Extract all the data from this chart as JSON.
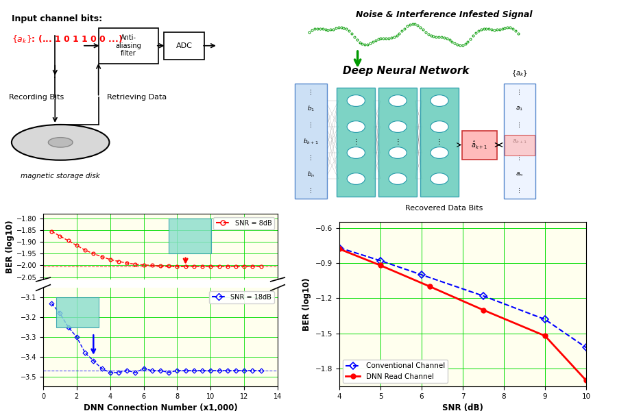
{
  "background_color": "#ffffff",
  "panel_bg": "#ffffee",
  "grid_color": "#00dd00",
  "left_chart": {
    "xlabel": "DNN Connection Number (x1,000)",
    "ylabel": "BER (log10)",
    "xlim": [
      0,
      14
    ],
    "yticks_top": [
      -1.8,
      -1.85,
      -1.9,
      -1.95,
      -2.0,
      -2.05
    ],
    "yticks_bot": [
      -3.1,
      -3.2,
      -3.3,
      -3.4,
      -3.5
    ],
    "xticks": [
      0,
      2,
      4,
      6,
      8,
      10,
      12,
      14
    ],
    "red_x": [
      0.5,
      1.0,
      1.5,
      2.0,
      2.5,
      3.0,
      3.5,
      4.0,
      4.5,
      5.0,
      5.5,
      6.0,
      6.5,
      7.0,
      7.5,
      8.0,
      8.5,
      9.0,
      9.5,
      10.0,
      10.5,
      11.0,
      11.5,
      12.0,
      12.5,
      13.0
    ],
    "red_y": [
      -1.855,
      -1.875,
      -1.895,
      -1.915,
      -1.935,
      -1.95,
      -1.963,
      -1.975,
      -1.983,
      -1.99,
      -1.995,
      -1.998,
      -2.0,
      -2.002,
      -2.003,
      -2.004,
      -2.004,
      -2.005,
      -2.005,
      -2.005,
      -2.005,
      -2.005,
      -2.005,
      -2.005,
      -2.005,
      -2.005
    ],
    "blue_x": [
      0.5,
      1.0,
      1.5,
      2.0,
      2.5,
      3.0,
      3.5,
      4.0,
      4.5,
      5.0,
      5.5,
      6.0,
      6.5,
      7.0,
      7.5,
      8.0,
      8.5,
      9.0,
      9.5,
      10.0,
      10.5,
      11.0,
      11.5,
      12.0,
      12.5,
      13.0
    ],
    "blue_y": [
      -3.13,
      -3.18,
      -3.25,
      -3.3,
      -3.38,
      -3.42,
      -3.46,
      -3.48,
      -3.48,
      -3.47,
      -3.48,
      -3.46,
      -3.47,
      -3.47,
      -3.48,
      -3.47,
      -3.47,
      -3.47,
      -3.47,
      -3.47,
      -3.47,
      -3.47,
      -3.47,
      -3.47,
      -3.47,
      -3.47
    ],
    "legend_snr8": "SNR = 8dB",
    "legend_snr18": "SNR = 18dB"
  },
  "right_chart": {
    "xlabel": "SNR (dB)",
    "ylabel": "BER (log10)",
    "xlim": [
      4,
      10
    ],
    "ylim": [
      -1.95,
      -0.55
    ],
    "xticks": [
      4,
      5,
      6,
      7,
      8,
      9,
      10
    ],
    "yticks": [
      -0.6,
      -0.9,
      -1.2,
      -1.5,
      -1.8
    ],
    "conv_x": [
      4,
      5,
      6,
      7.5,
      9,
      10
    ],
    "conv_y": [
      -0.77,
      -0.88,
      -1.0,
      -1.18,
      -1.38,
      -1.62
    ],
    "dnn_x": [
      4,
      5,
      6.2,
      7.5,
      9,
      10
    ],
    "dnn_y": [
      -0.78,
      -0.92,
      -1.1,
      -1.3,
      -1.52,
      -1.9
    ],
    "legend_conv": "Conventional Channel",
    "legend_dnn": "DNN Read Channel"
  }
}
